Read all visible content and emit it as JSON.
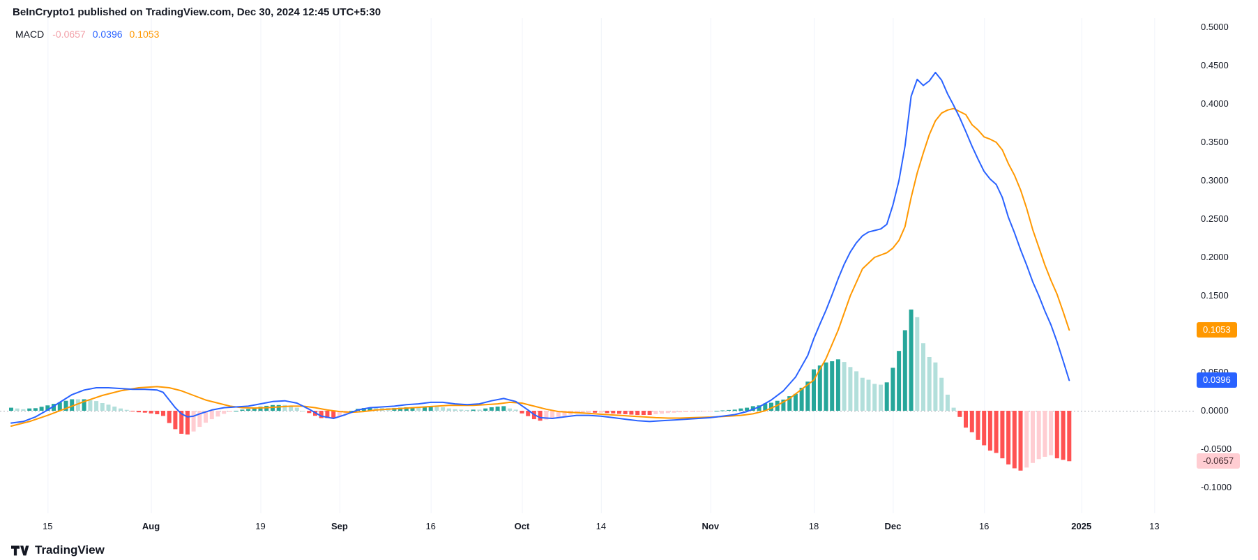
{
  "header": {
    "text": "BeInCrypto1 published on TradingView.com, Dec 30, 2024 12:45 UTC+5:30"
  },
  "legend": {
    "indicator": "MACD",
    "values": [
      {
        "name": "histogram",
        "text": "-0.0657",
        "color": "#f2a0a8"
      },
      {
        "name": "macd",
        "text": "0.0396",
        "color": "#2962ff"
      },
      {
        "name": "signal",
        "text": "0.1053",
        "color": "#ff9800"
      }
    ]
  },
  "footer": {
    "brand": "TradingView"
  },
  "chart_data": {
    "type": "macd",
    "description": "MACD indicator pane: blue MACD line, orange signal line, histogram bars = MACD minus signal",
    "date_origin": "day 0 = 2024-07-09, one histogram bar per day, data ends 2024-12-30 (day 174)",
    "ylim": [
      -0.1,
      0.5
    ],
    "grid": "vertical-only",
    "last_values": {
      "histogram": -0.0657,
      "macd": 0.0396,
      "signal": 0.1053
    },
    "histogram_colors": {
      "grow_above": "#26a69a",
      "fall_above": "#b2dfdb",
      "fall_below": "#ff5252",
      "grow_below": "#ffcdd2"
    },
    "zero_line_color": "#a9adb5",
    "grid_color": "#f0f3fa",
    "macd_line": {
      "name": "MACD line",
      "color": "#2962ff",
      "points": [
        [
          0,
          -0.016
        ],
        [
          2,
          -0.014
        ],
        [
          4,
          -0.008
        ],
        [
          6,
          0.001
        ],
        [
          8,
          0.011
        ],
        [
          10,
          0.021
        ],
        [
          12,
          0.027
        ],
        [
          14,
          0.03
        ],
        [
          16,
          0.03
        ],
        [
          18,
          0.029
        ],
        [
          20,
          0.028
        ],
        [
          22,
          0.028
        ],
        [
          24,
          0.027
        ],
        [
          25,
          0.024
        ],
        [
          26,
          0.014
        ],
        [
          27,
          0.004
        ],
        [
          28,
          -0.004
        ],
        [
          29,
          -0.008
        ],
        [
          30,
          -0.007
        ],
        [
          31,
          -0.004
        ],
        [
          33,
          0.001
        ],
        [
          35,
          0.004
        ],
        [
          37,
          0.005
        ],
        [
          39,
          0.006
        ],
        [
          41,
          0.009
        ],
        [
          43,
          0.012
        ],
        [
          45,
          0.013
        ],
        [
          47,
          0.01
        ],
        [
          49,
          0.002
        ],
        [
          51,
          -0.007
        ],
        [
          53,
          -0.01
        ],
        [
          55,
          -0.005
        ],
        [
          57,
          0.001
        ],
        [
          59,
          0.004
        ],
        [
          61,
          0.005
        ],
        [
          63,
          0.006
        ],
        [
          65,
          0.008
        ],
        [
          67,
          0.009
        ],
        [
          69,
          0.011
        ],
        [
          71,
          0.011
        ],
        [
          73,
          0.009
        ],
        [
          75,
          0.008
        ],
        [
          77,
          0.009
        ],
        [
          79,
          0.013
        ],
        [
          81,
          0.016
        ],
        [
          83,
          0.012
        ],
        [
          85,
          0.001
        ],
        [
          86,
          -0.005
        ],
        [
          87,
          -0.009
        ],
        [
          89,
          -0.01
        ],
        [
          91,
          -0.008
        ],
        [
          93,
          -0.006
        ],
        [
          95,
          -0.006
        ],
        [
          97,
          -0.007
        ],
        [
          99,
          -0.009
        ],
        [
          101,
          -0.011
        ],
        [
          103,
          -0.013
        ],
        [
          105,
          -0.014
        ],
        [
          107,
          -0.013
        ],
        [
          109,
          -0.012
        ],
        [
          111,
          -0.011
        ],
        [
          113,
          -0.01
        ],
        [
          115,
          -0.009
        ],
        [
          117,
          -0.007
        ],
        [
          119,
          -0.005
        ],
        [
          121,
          -0.001
        ],
        [
          123,
          0.005
        ],
        [
          125,
          0.014
        ],
        [
          127,
          0.026
        ],
        [
          129,
          0.044
        ],
        [
          131,
          0.072
        ],
        [
          132,
          0.094
        ],
        [
          133,
          0.113
        ],
        [
          134,
          0.131
        ],
        [
          135,
          0.151
        ],
        [
          136,
          0.172
        ],
        [
          137,
          0.191
        ],
        [
          138,
          0.207
        ],
        [
          139,
          0.219
        ],
        [
          140,
          0.228
        ],
        [
          141,
          0.233
        ],
        [
          142,
          0.235
        ],
        [
          143,
          0.237
        ],
        [
          144,
          0.243
        ],
        [
          145,
          0.268
        ],
        [
          146,
          0.3
        ],
        [
          147,
          0.345
        ],
        [
          148,
          0.41
        ],
        [
          149,
          0.432
        ],
        [
          150,
          0.424
        ],
        [
          151,
          0.43
        ],
        [
          152,
          0.441
        ],
        [
          153,
          0.431
        ],
        [
          154,
          0.413
        ],
        [
          155,
          0.398
        ],
        [
          156,
          0.382
        ],
        [
          157,
          0.364
        ],
        [
          158,
          0.345
        ],
        [
          159,
          0.328
        ],
        [
          160,
          0.312
        ],
        [
          161,
          0.302
        ],
        [
          162,
          0.295
        ],
        [
          163,
          0.278
        ],
        [
          164,
          0.252
        ],
        [
          165,
          0.232
        ],
        [
          166,
          0.21
        ],
        [
          167,
          0.19
        ],
        [
          168,
          0.168
        ],
        [
          169,
          0.15
        ],
        [
          170,
          0.13
        ],
        [
          171,
          0.112
        ],
        [
          172,
          0.09
        ],
        [
          173,
          0.065
        ],
        [
          174,
          0.0396
        ]
      ]
    },
    "signal_line": {
      "name": "Signal line",
      "color": "#ff9800",
      "points": [
        [
          0,
          -0.02
        ],
        [
          3,
          -0.014
        ],
        [
          6,
          -0.006
        ],
        [
          9,
          0.003
        ],
        [
          12,
          0.012
        ],
        [
          15,
          0.02
        ],
        [
          18,
          0.026
        ],
        [
          21,
          0.03
        ],
        [
          24,
          0.0315
        ],
        [
          26,
          0.03
        ],
        [
          28,
          0.026
        ],
        [
          30,
          0.02
        ],
        [
          32,
          0.014
        ],
        [
          34,
          0.01
        ],
        [
          36,
          0.006
        ],
        [
          38,
          0.004
        ],
        [
          40,
          0.0035
        ],
        [
          42,
          0.004
        ],
        [
          44,
          0.005
        ],
        [
          46,
          0.006
        ],
        [
          48,
          0.006
        ],
        [
          50,
          0.004
        ],
        [
          52,
          0.001
        ],
        [
          54,
          -0.001
        ],
        [
          56,
          -0.002
        ],
        [
          58,
          -0.001
        ],
        [
          60,
          0.001
        ],
        [
          62,
          0.002
        ],
        [
          64,
          0.003
        ],
        [
          66,
          0.004
        ],
        [
          68,
          0.005
        ],
        [
          70,
          0.006
        ],
        [
          72,
          0.007
        ],
        [
          74,
          0.007
        ],
        [
          76,
          0.007
        ],
        [
          78,
          0.008
        ],
        [
          80,
          0.009
        ],
        [
          82,
          0.011
        ],
        [
          84,
          0.01
        ],
        [
          86,
          0.006
        ],
        [
          88,
          0.002
        ],
        [
          90,
          -0.001
        ],
        [
          92,
          -0.002
        ],
        [
          94,
          -0.003
        ],
        [
          96,
          -0.004
        ],
        [
          98,
          -0.005
        ],
        [
          100,
          -0.006
        ],
        [
          102,
          -0.007
        ],
        [
          104,
          -0.008
        ],
        [
          106,
          -0.009
        ],
        [
          108,
          -0.0095
        ],
        [
          110,
          -0.0095
        ],
        [
          112,
          -0.009
        ],
        [
          114,
          -0.0085
        ],
        [
          116,
          -0.008
        ],
        [
          118,
          -0.007
        ],
        [
          120,
          -0.006
        ],
        [
          122,
          -0.004
        ],
        [
          124,
          0.0
        ],
        [
          126,
          0.007
        ],
        [
          128,
          0.016
        ],
        [
          130,
          0.028
        ],
        [
          132,
          0.04
        ],
        [
          134,
          0.068
        ],
        [
          136,
          0.105
        ],
        [
          138,
          0.15
        ],
        [
          140,
          0.185
        ],
        [
          142,
          0.2
        ],
        [
          144,
          0.206
        ],
        [
          145,
          0.212
        ],
        [
          146,
          0.222
        ],
        [
          147,
          0.24
        ],
        [
          148,
          0.278
        ],
        [
          149,
          0.31
        ],
        [
          150,
          0.336
        ],
        [
          151,
          0.36
        ],
        [
          152,
          0.378
        ],
        [
          153,
          0.388
        ],
        [
          154,
          0.392
        ],
        [
          155,
          0.394
        ],
        [
          156,
          0.39
        ],
        [
          157,
          0.386
        ],
        [
          158,
          0.373
        ],
        [
          159,
          0.366
        ],
        [
          160,
          0.357
        ],
        [
          161,
          0.354
        ],
        [
          162,
          0.35
        ],
        [
          163,
          0.34
        ],
        [
          164,
          0.322
        ],
        [
          165,
          0.307
        ],
        [
          166,
          0.288
        ],
        [
          167,
          0.264
        ],
        [
          168,
          0.236
        ],
        [
          169,
          0.213
        ],
        [
          170,
          0.19
        ],
        [
          171,
          0.17
        ],
        [
          172,
          0.152
        ],
        [
          173,
          0.129
        ],
        [
          174,
          0.1053
        ]
      ]
    },
    "y_ticks": [
      {
        "label": "0.5000",
        "value": 0.5
      },
      {
        "label": "0.4500",
        "value": 0.45
      },
      {
        "label": "0.4000",
        "value": 0.4
      },
      {
        "label": "0.3500",
        "value": 0.35
      },
      {
        "label": "0.3000",
        "value": 0.3
      },
      {
        "label": "0.2500",
        "value": 0.25
      },
      {
        "label": "0.2000",
        "value": 0.2
      },
      {
        "label": "0.1500",
        "value": 0.15
      },
      {
        "label": "0.0500",
        "value": 0.05
      },
      {
        "label": "0.0000",
        "value": 0.0
      },
      {
        "label": "-0.0500",
        "value": -0.05
      },
      {
        "label": "-0.1000",
        "value": -0.1
      }
    ],
    "x_ticks": [
      {
        "day": 6,
        "label": "15",
        "bold": false
      },
      {
        "day": 23,
        "label": "Aug",
        "bold": true
      },
      {
        "day": 41,
        "label": "19",
        "bold": false
      },
      {
        "day": 54,
        "label": "Sep",
        "bold": true
      },
      {
        "day": 69,
        "label": "16",
        "bold": false
      },
      {
        "day": 84,
        "label": "Oct",
        "bold": true
      },
      {
        "day": 97,
        "label": "14",
        "bold": false
      },
      {
        "day": 115,
        "label": "Nov",
        "bold": true
      },
      {
        "day": 132,
        "label": "18",
        "bold": false
      },
      {
        "day": 145,
        "label": "Dec",
        "bold": true
      },
      {
        "day": 160,
        "label": "16",
        "bold": false
      },
      {
        "day": 176,
        "label": "2025",
        "bold": true
      },
      {
        "day": 188,
        "label": "13",
        "bold": false
      }
    ],
    "axis_badges": [
      {
        "series": "signal",
        "label": "0.1053",
        "value": 0.1053,
        "bg": "#ff9800",
        "fg": "#ffffff"
      },
      {
        "series": "macd",
        "label": "0.0396",
        "value": 0.0396,
        "bg": "#2962ff",
        "fg": "#ffffff"
      },
      {
        "series": "histogram",
        "label": "-0.0657",
        "value": -0.0657,
        "bg": "#ffcdd2",
        "fg": "#42292e"
      }
    ]
  }
}
